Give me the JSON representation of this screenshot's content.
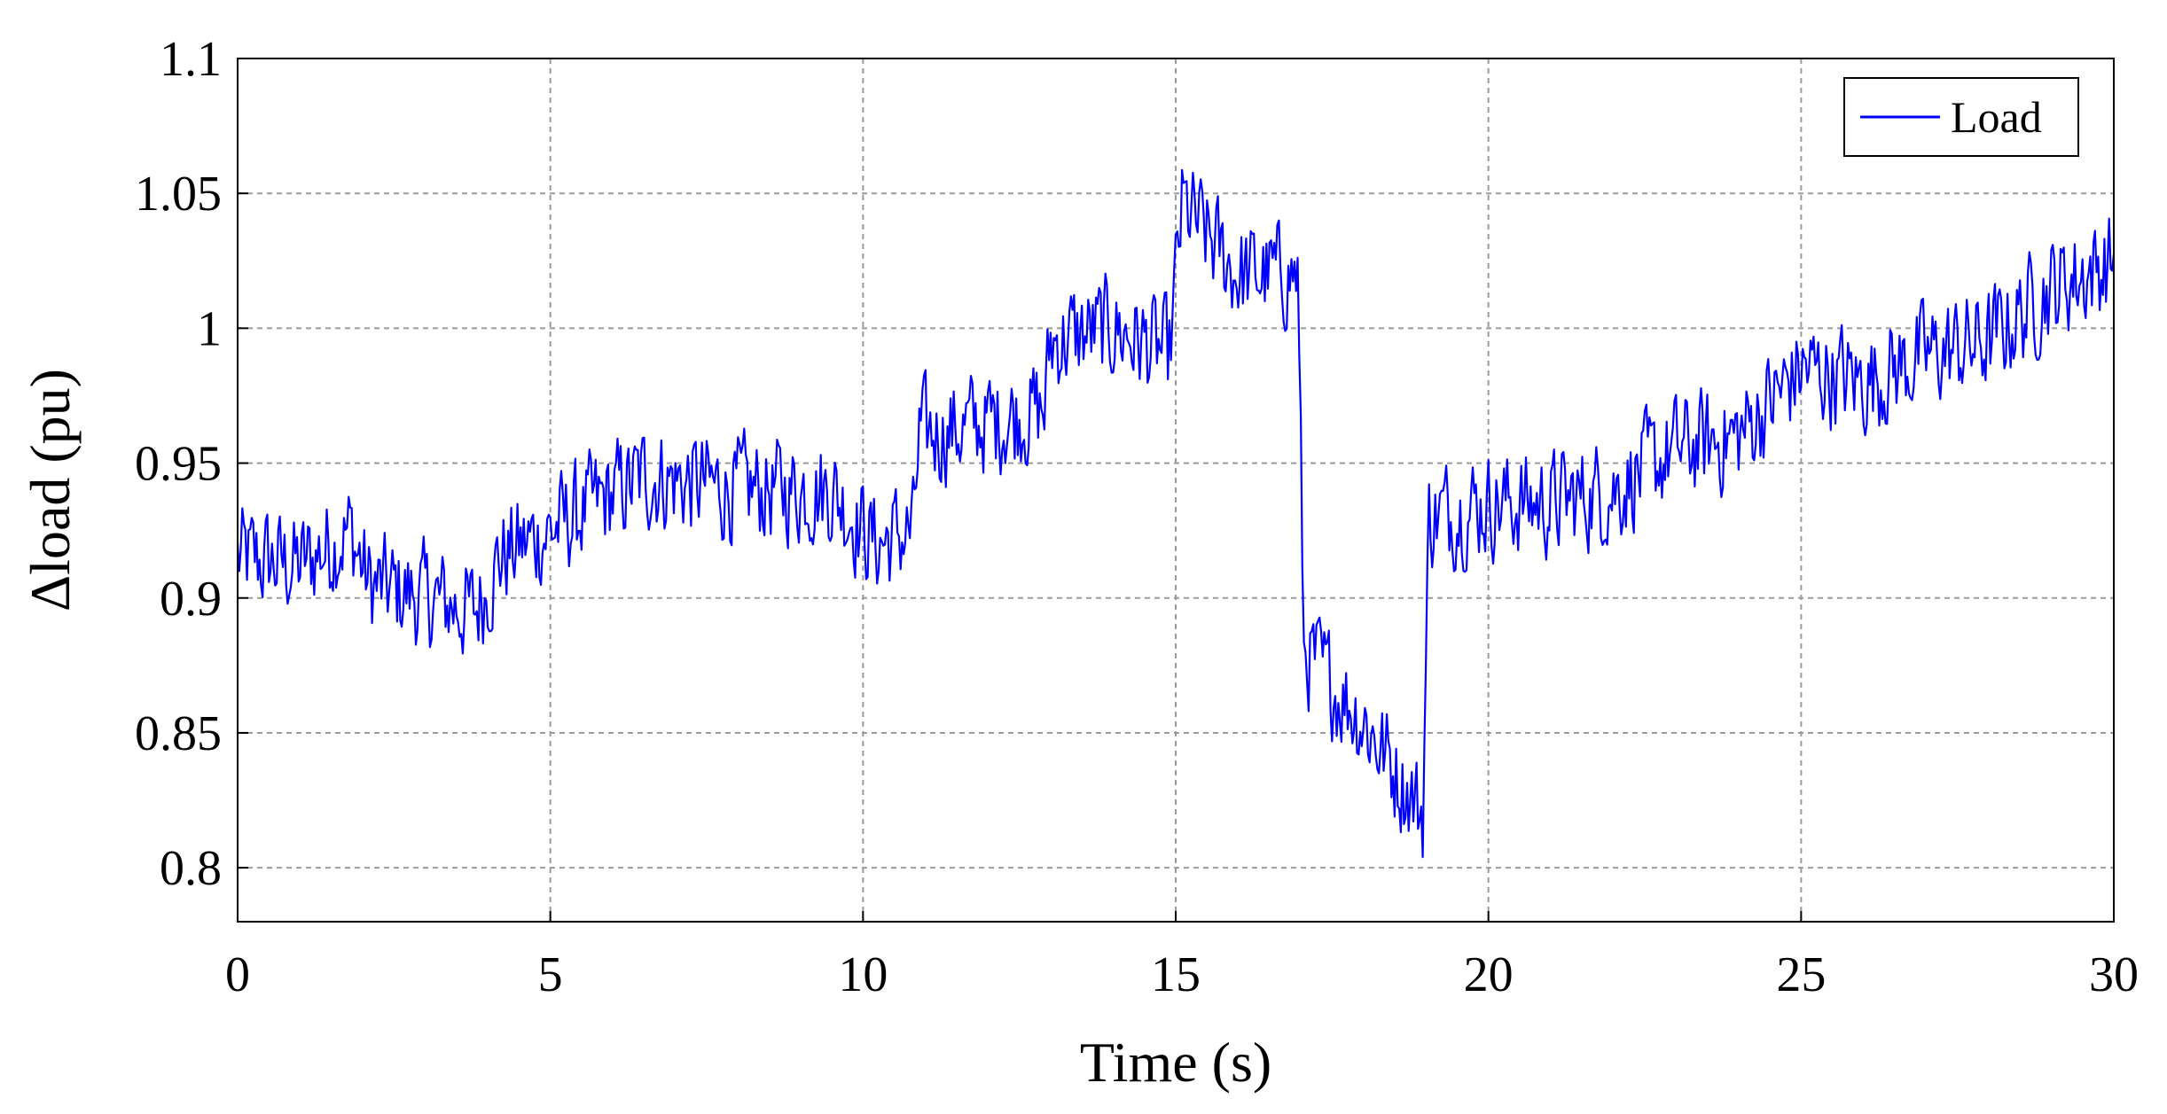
{
  "chart_data": {
    "type": "line",
    "xlabel": "Time (s)",
    "ylabel": "Δload (pu)",
    "xlim": [
      0,
      30
    ],
    "ylim": [
      0.78,
      1.1
    ],
    "xticks": [
      0,
      5,
      10,
      15,
      20,
      25,
      30
    ],
    "xtick_labels": [
      "0",
      "5",
      "10",
      "15",
      "20",
      "25",
      "30"
    ],
    "yticks": [
      0.8,
      0.85,
      0.9,
      0.95,
      1.0,
      1.05,
      1.1
    ],
    "ytick_labels": [
      "0.8",
      "0.85",
      "0.9",
      "0.95",
      "1",
      "1.05",
      "1.1"
    ],
    "grid": true,
    "legend_position": "top-right",
    "sample_step": 0.025,
    "noise_amplitude": 0.022,
    "series": [
      {
        "name": "Load",
        "color": "#0000ff",
        "trend": [
          [
            0,
            0.915
          ],
          [
            1,
            0.912
          ],
          [
            1.8,
            0.925
          ],
          [
            2.1,
            0.905
          ],
          [
            3,
            0.9
          ],
          [
            3.8,
            0.895
          ],
          [
            4.2,
            0.915
          ],
          [
            5,
            0.925
          ],
          [
            6.5,
            0.945
          ],
          [
            8,
            0.94
          ],
          [
            9.5,
            0.94
          ],
          [
            10.2,
            0.92
          ],
          [
            10.8,
            0.925
          ],
          [
            10.9,
            0.96
          ],
          [
            12,
            0.965
          ],
          [
            12.9,
            0.97
          ],
          [
            13,
            0.995
          ],
          [
            14,
            1.0
          ],
          [
            14.9,
            0.99
          ],
          [
            15.1,
            1.045
          ],
          [
            16,
            1.02
          ],
          [
            16.95,
            1.02
          ],
          [
            17.05,
            0.88
          ],
          [
            18,
            0.855
          ],
          [
            18.95,
            0.82
          ],
          [
            19.05,
            0.93
          ],
          [
            20,
            0.935
          ],
          [
            21,
            0.935
          ],
          [
            22,
            0.94
          ],
          [
            23,
            0.955
          ],
          [
            24,
            0.96
          ],
          [
            25,
            0.985
          ],
          [
            26,
            0.98
          ],
          [
            27,
            0.99
          ],
          [
            28,
            0.995
          ],
          [
            29,
            1.015
          ],
          [
            30,
            1.025
          ]
        ]
      }
    ]
  }
}
